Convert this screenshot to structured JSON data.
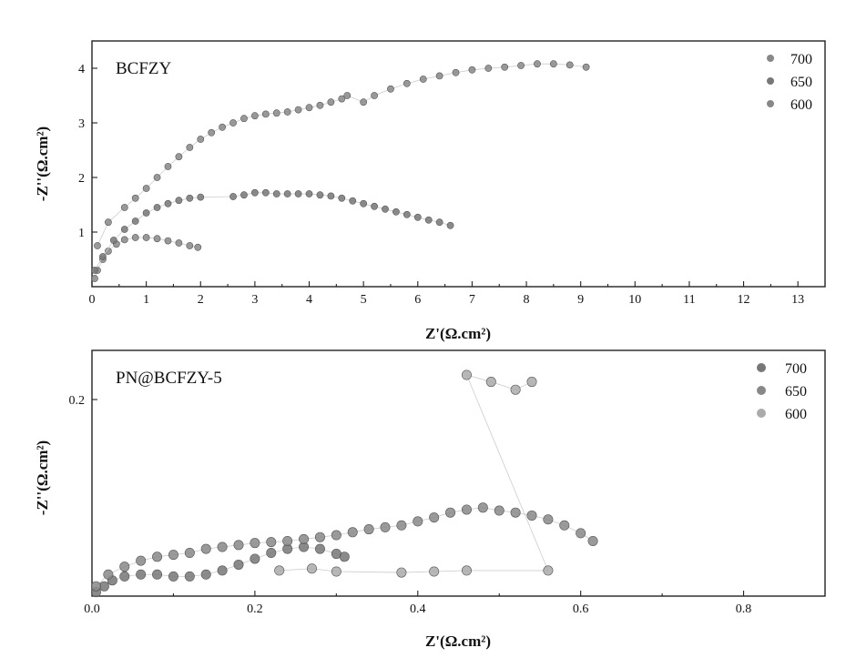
{
  "chart_data": [
    {
      "type": "scatter",
      "title": "BCFZY",
      "xlabel": "Z'(Ω.cm²)",
      "ylabel": "-Z''(Ω.cm²)",
      "xlim": [
        0,
        13.5
      ],
      "ylim": [
        0,
        4.5
      ],
      "xticks": [
        "0",
        "1",
        "2",
        "3",
        "4",
        "5",
        "6",
        "7",
        "8",
        "9",
        "10",
        "11",
        "12",
        "13"
      ],
      "yticks": [
        "1",
        "2",
        "3",
        "4"
      ],
      "ytick_values": [
        1,
        2,
        3,
        4
      ],
      "legend_position": "top-right",
      "series": [
        {
          "name": "700",
          "color": "#888888",
          "points": [
            [
              0.05,
              0.15
            ],
            [
              0.1,
              0.3
            ],
            [
              0.2,
              0.5
            ],
            [
              0.3,
              0.65
            ],
            [
              0.45,
              0.78
            ],
            [
              0.6,
              0.86
            ],
            [
              0.8,
              0.9
            ],
            [
              1.0,
              0.9
            ],
            [
              1.2,
              0.88
            ],
            [
              1.4,
              0.84
            ],
            [
              1.6,
              0.8
            ],
            [
              1.8,
              0.75
            ],
            [
              1.95,
              0.72
            ]
          ]
        },
        {
          "name": "650",
          "color": "#777777",
          "points": [
            [
              0.05,
              0.3
            ],
            [
              0.2,
              0.55
            ],
            [
              0.4,
              0.85
            ],
            [
              0.6,
              1.05
            ],
            [
              0.8,
              1.2
            ],
            [
              1.0,
              1.35
            ],
            [
              1.2,
              1.45
            ],
            [
              1.4,
              1.52
            ],
            [
              1.6,
              1.58
            ],
            [
              1.8,
              1.62
            ],
            [
              2.0,
              1.64
            ],
            [
              2.6,
              1.65
            ],
            [
              2.8,
              1.68
            ],
            [
              3.0,
              1.72
            ],
            [
              3.2,
              1.72
            ],
            [
              3.4,
              1.7
            ],
            [
              3.6,
              1.7
            ],
            [
              3.8,
              1.7
            ],
            [
              4.0,
              1.7
            ],
            [
              4.2,
              1.68
            ],
            [
              4.4,
              1.66
            ],
            [
              4.6,
              1.62
            ],
            [
              4.8,
              1.57
            ],
            [
              5.0,
              1.52
            ],
            [
              5.2,
              1.47
            ],
            [
              5.4,
              1.42
            ],
            [
              5.6,
              1.37
            ],
            [
              5.8,
              1.32
            ],
            [
              6.0,
              1.27
            ],
            [
              6.2,
              1.22
            ],
            [
              6.4,
              1.18
            ],
            [
              6.6,
              1.12
            ]
          ]
        },
        {
          "name": "600",
          "color": "#888888",
          "points": [
            [
              0.1,
              0.75
            ],
            [
              0.3,
              1.18
            ],
            [
              0.6,
              1.45
            ],
            [
              0.8,
              1.62
            ],
            [
              1.0,
              1.8
            ],
            [
              1.2,
              2.0
            ],
            [
              1.4,
              2.2
            ],
            [
              1.6,
              2.38
            ],
            [
              1.8,
              2.55
            ],
            [
              2.0,
              2.7
            ],
            [
              2.2,
              2.82
            ],
            [
              2.4,
              2.92
            ],
            [
              2.6,
              3.0
            ],
            [
              2.8,
              3.08
            ],
            [
              3.0,
              3.13
            ],
            [
              3.2,
              3.16
            ],
            [
              3.4,
              3.18
            ],
            [
              3.6,
              3.2
            ],
            [
              3.8,
              3.24
            ],
            [
              4.0,
              3.28
            ],
            [
              4.2,
              3.32
            ],
            [
              4.4,
              3.38
            ],
            [
              4.6,
              3.44
            ],
            [
              4.7,
              3.5
            ],
            [
              5.0,
              3.38
            ],
            [
              5.2,
              3.5
            ],
            [
              5.5,
              3.62
            ],
            [
              5.8,
              3.72
            ],
            [
              6.1,
              3.8
            ],
            [
              6.4,
              3.86
            ],
            [
              6.7,
              3.92
            ],
            [
              7.0,
              3.97
            ],
            [
              7.3,
              4.0
            ],
            [
              7.6,
              4.02
            ],
            [
              7.9,
              4.05
            ],
            [
              8.2,
              4.08
            ],
            [
              8.5,
              4.08
            ],
            [
              8.8,
              4.06
            ],
            [
              9.1,
              4.02
            ]
          ]
        }
      ]
    },
    {
      "type": "scatter",
      "title": "PN@BCFZY-5",
      "xlabel": "Z'(Ω.cm²)",
      "ylabel": "-Z''(Ω.cm²)",
      "xlim": [
        0,
        0.9
      ],
      "ylim": [
        0,
        0.25
      ],
      "xticks": [
        "0.0",
        "0.2",
        "0.4",
        "0.6",
        "0.8"
      ],
      "yticks": [
        "0.2"
      ],
      "ytick_values": [
        0.2
      ],
      "legend_position": "top-right",
      "series": [
        {
          "name": "700",
          "color": "#777777",
          "points": [
            [
              0.005,
              0.004
            ],
            [
              0.015,
              0.01
            ],
            [
              0.025,
              0.016
            ],
            [
              0.04,
              0.02
            ],
            [
              0.06,
              0.022
            ],
            [
              0.08,
              0.022
            ],
            [
              0.1,
              0.02
            ],
            [
              0.12,
              0.02
            ],
            [
              0.14,
              0.022
            ],
            [
              0.16,
              0.026
            ],
            [
              0.18,
              0.032
            ],
            [
              0.2,
              0.038
            ],
            [
              0.22,
              0.044
            ],
            [
              0.24,
              0.048
            ],
            [
              0.26,
              0.05
            ],
            [
              0.28,
              0.048
            ],
            [
              0.3,
              0.043
            ],
            [
              0.31,
              0.04
            ]
          ]
        },
        {
          "name": "650",
          "color": "#888888",
          "points": [
            [
              0.005,
              0.01
            ],
            [
              0.02,
              0.022
            ],
            [
              0.04,
              0.03
            ],
            [
              0.06,
              0.036
            ],
            [
              0.08,
              0.04
            ],
            [
              0.1,
              0.042
            ],
            [
              0.12,
              0.044
            ],
            [
              0.14,
              0.048
            ],
            [
              0.16,
              0.05
            ],
            [
              0.18,
              0.052
            ],
            [
              0.2,
              0.054
            ],
            [
              0.22,
              0.055
            ],
            [
              0.24,
              0.056
            ],
            [
              0.26,
              0.058
            ],
            [
              0.28,
              0.06
            ],
            [
              0.3,
              0.062
            ],
            [
              0.32,
              0.065
            ],
            [
              0.34,
              0.068
            ],
            [
              0.36,
              0.07
            ],
            [
              0.38,
              0.072
            ],
            [
              0.4,
              0.076
            ],
            [
              0.42,
              0.08
            ],
            [
              0.44,
              0.085
            ],
            [
              0.46,
              0.088
            ],
            [
              0.48,
              0.09
            ],
            [
              0.5,
              0.087
            ],
            [
              0.52,
              0.085
            ],
            [
              0.54,
              0.082
            ],
            [
              0.56,
              0.078
            ],
            [
              0.58,
              0.072
            ],
            [
              0.6,
              0.064
            ],
            [
              0.615,
              0.056
            ]
          ]
        },
        {
          "name": "600",
          "color": "#aaaaaa",
          "points": [
            [
              0.23,
              0.026
            ],
            [
              0.27,
              0.028
            ],
            [
              0.3,
              0.025
            ],
            [
              0.38,
              0.024
            ],
            [
              0.42,
              0.025
            ],
            [
              0.46,
              0.026
            ],
            [
              0.56,
              0.026
            ],
            [
              0.46,
              0.225
            ],
            [
              0.49,
              0.218
            ],
            [
              0.52,
              0.21
            ],
            [
              0.54,
              0.218
            ]
          ]
        }
      ]
    }
  ]
}
